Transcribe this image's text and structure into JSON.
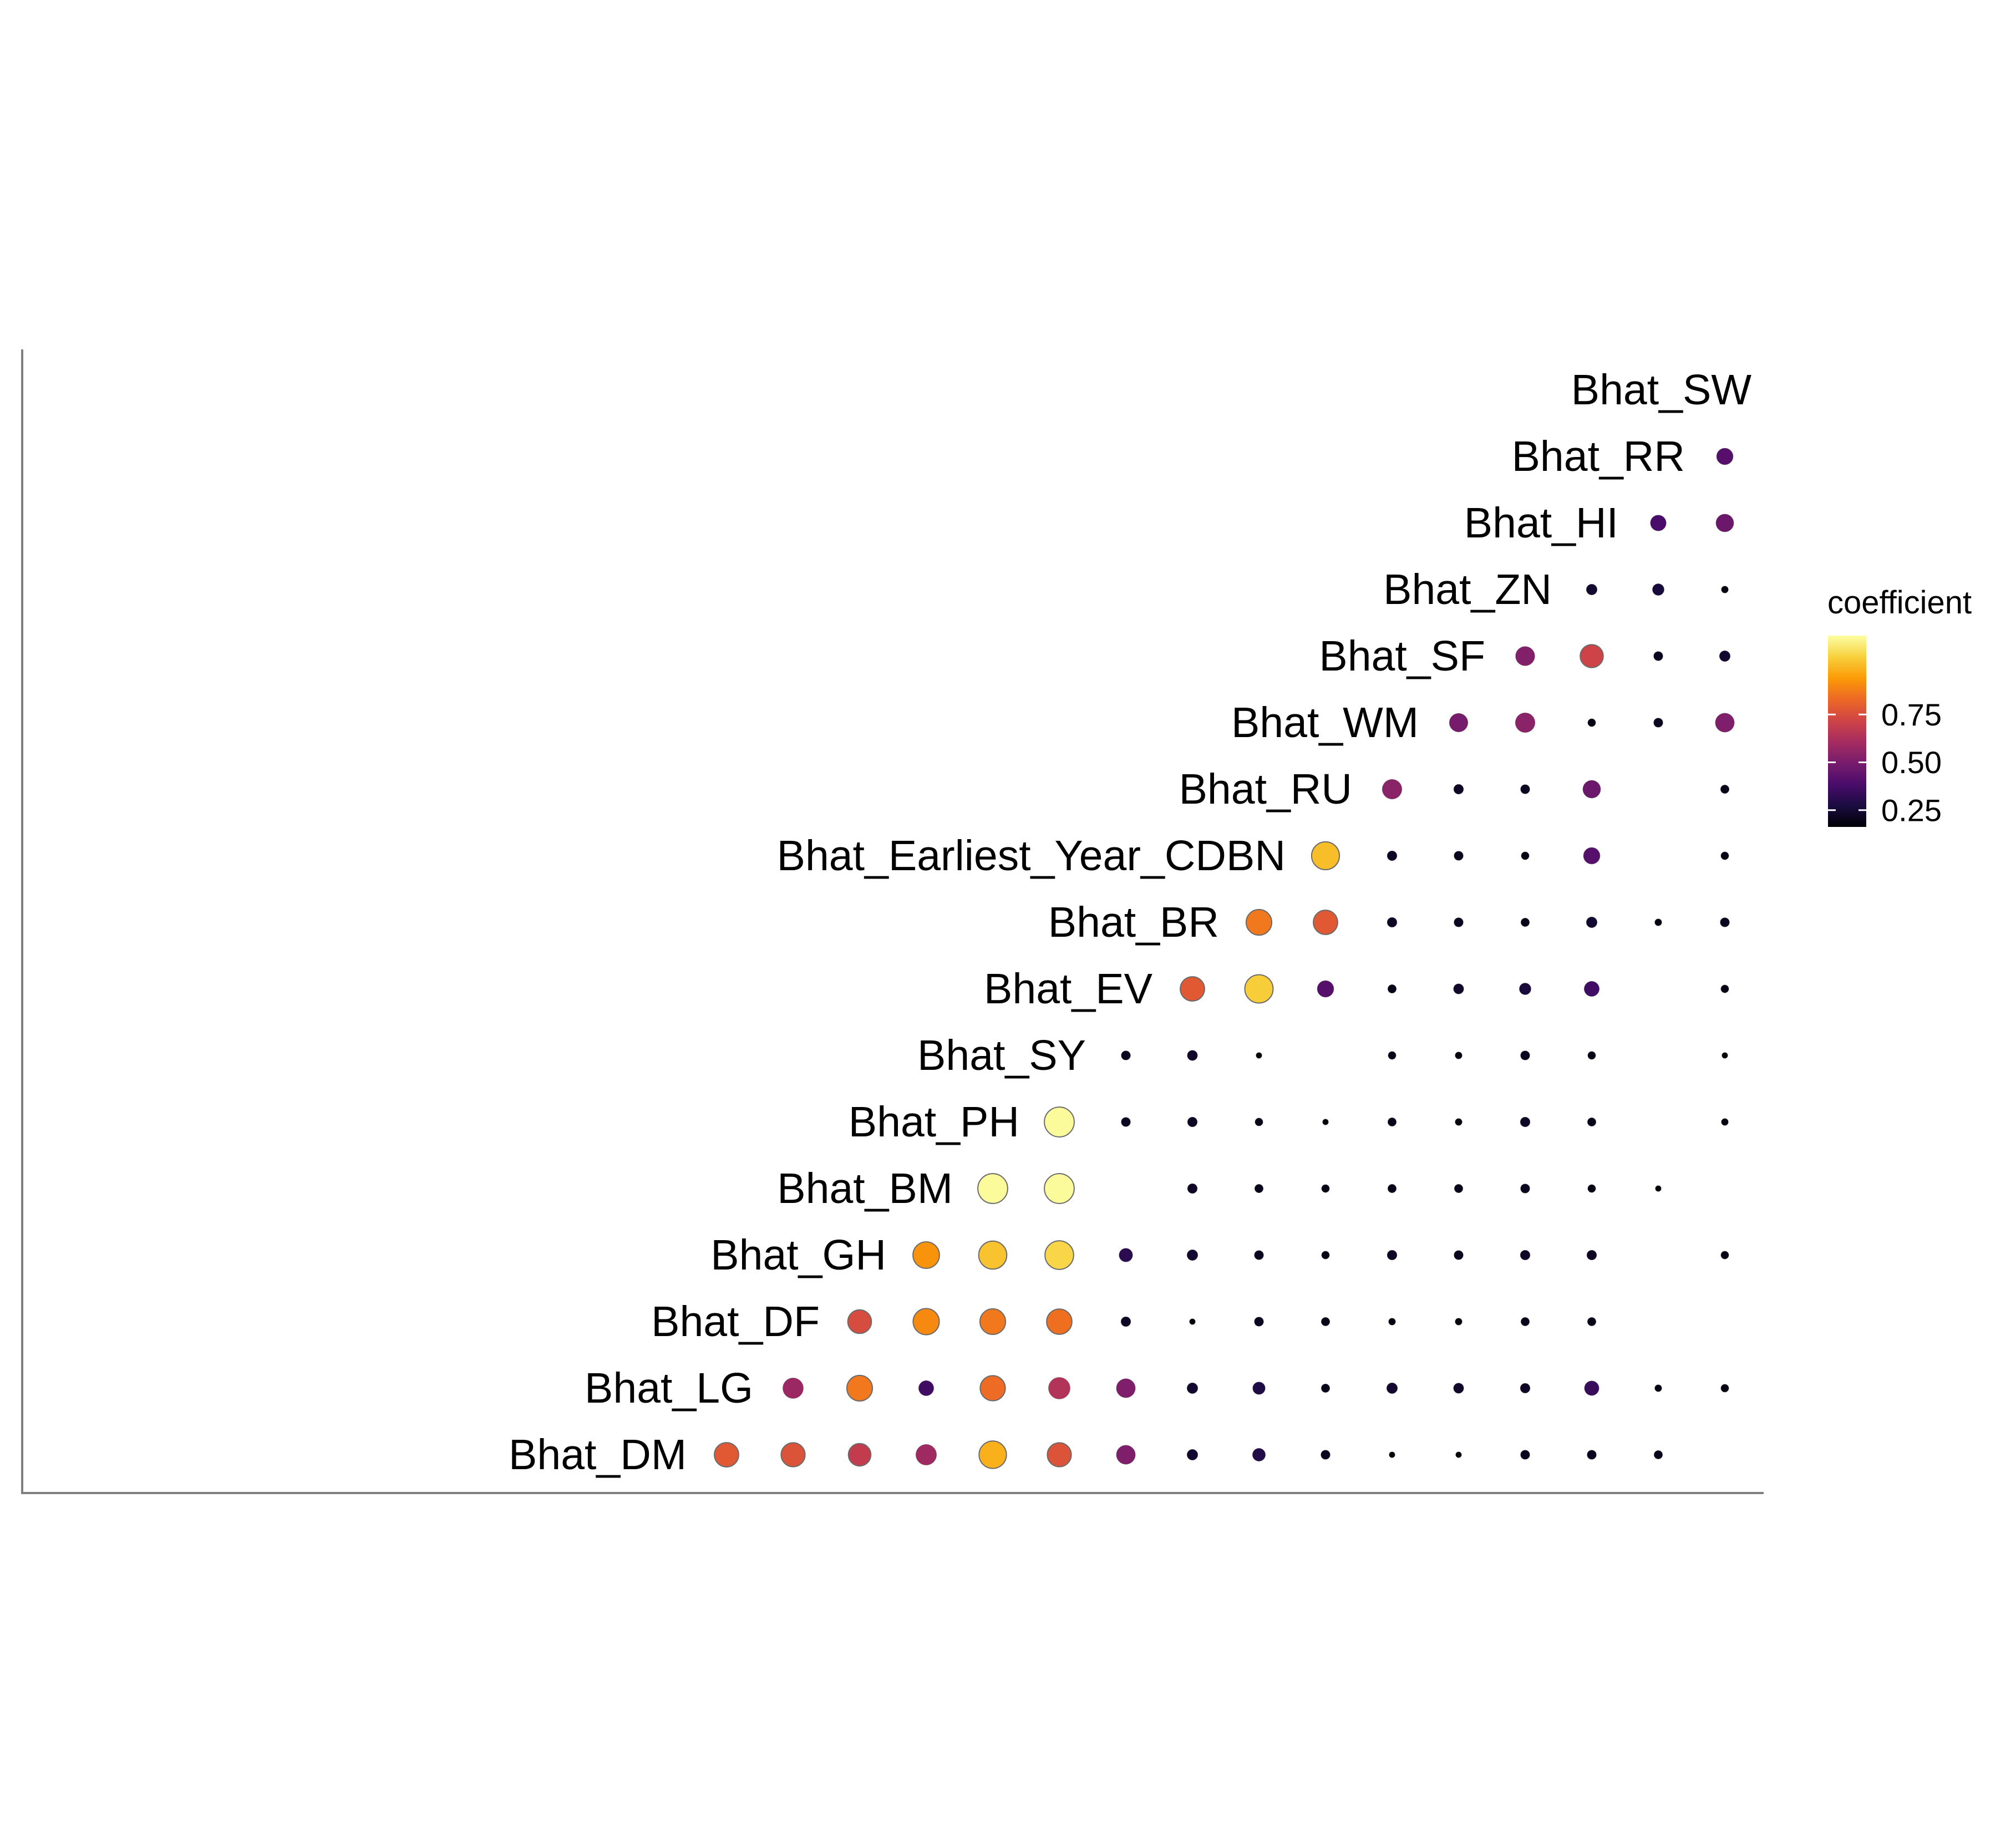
{
  "chart_data": {
    "type": "scatter",
    "subtype": "correlation-triangle",
    "title": "",
    "variables": [
      "Bhat_DM",
      "Bhat_LG",
      "Bhat_DF",
      "Bhat_GH",
      "Bhat_BM",
      "Bhat_PH",
      "Bhat_SY",
      "Bhat_EV",
      "Bhat_BR",
      "Bhat_Earliest_Year_CDBN",
      "Bhat_RU",
      "Bhat_WM",
      "Bhat_SF",
      "Bhat_ZN",
      "Bhat_HI",
      "Bhat_RR",
      "Bhat_SW"
    ],
    "value_label": "coefficient",
    "color_scale": "inferno",
    "color_range": [
      0,
      1
    ],
    "legend_ticks": [
      "0.25",
      "0.50",
      "0.75"
    ],
    "legend_position": "right",
    "grid": false,
    "rows": [
      {
        "row": "Bhat_DM",
        "values": [
          0.62,
          0.6,
          0.52,
          0.43,
          0.82,
          0.6,
          0.35,
          0.08,
          0.13,
          0.05,
          0.01,
          0.01,
          0.05,
          0.05,
          0.04,
          null
        ]
      },
      {
        "row": "Bhat_LG",
        "values": [
          0.42,
          0.7,
          0.2,
          0.67,
          0.48,
          0.35,
          0.08,
          0.12,
          0.04,
          0.08,
          0.07,
          0.06,
          0.18,
          0.02,
          0.03
        ]
      },
      {
        "row": "Bhat_DF",
        "values": [
          0.58,
          0.74,
          0.7,
          0.68,
          0.06,
          0.01,
          0.05,
          0.04,
          0.02,
          0.02,
          0.04,
          0.04,
          null,
          null
        ]
      },
      {
        "row": "Bhat_GH",
        "values": [
          0.76,
          0.86,
          0.9,
          0.15,
          0.08,
          0.05,
          0.03,
          0.06,
          0.05,
          0.06,
          0.06,
          null,
          0.03
        ]
      },
      {
        "row": "Bhat_BM",
        "values": [
          0.99,
          0.99,
          null,
          0.06,
          0.04,
          0.03,
          0.04,
          0.04,
          0.05,
          0.03,
          0.01,
          null
        ]
      },
      {
        "row": "Bhat_PH",
        "values": [
          0.99,
          0.05,
          0.06,
          0.03,
          0.01,
          0.04,
          0.02,
          0.06,
          0.04,
          null,
          0.02
        ]
      },
      {
        "row": "Bhat_SY",
        "values": [
          0.05,
          0.07,
          0.01,
          null,
          0.03,
          0.02,
          0.05,
          0.03,
          null,
          0.01
        ]
      },
      {
        "row": "Bhat_EV",
        "values": [
          0.62,
          0.88,
          0.25,
          0.04,
          0.07,
          0.1,
          0.2,
          null,
          0.03
        ]
      },
      {
        "row": "Bhat_BR",
        "values": [
          0.7,
          0.62,
          0.06,
          0.05,
          0.04,
          0.08,
          0.02,
          0.05
        ]
      },
      {
        "row": "Bhat_Earliest_Year_CDBN",
        "values": [
          0.85,
          0.06,
          0.05,
          0.03,
          0.25,
          null,
          0.03
        ]
      },
      {
        "row": "Bhat_RU",
        "values": [
          0.38,
          0.06,
          0.05,
          0.3,
          null,
          0.04
        ]
      },
      {
        "row": "Bhat_WM",
        "values": [
          0.33,
          0.38,
          0.03,
          0.05,
          0.35
        ]
      },
      {
        "row": "Bhat_SF",
        "values": [
          0.36,
          0.55,
          0.05,
          0.08
        ]
      },
      {
        "row": "Bhat_ZN",
        "values": [
          0.08,
          0.1,
          0.02
        ]
      },
      {
        "row": "Bhat_HI",
        "values": [
          0.22,
          0.3
        ]
      },
      {
        "row": "Bhat_RR",
        "values": [
          0.25
        ]
      },
      {
        "row": "Bhat_SW",
        "values": []
      }
    ]
  },
  "colors": {
    "axis_line": "#7f7f7f",
    "point_outline": "#6b6b6b",
    "scale_stops": [
      "#000004",
      "#1b0c41",
      "#4a0c6b",
      "#781c6d",
      "#a52c60",
      "#cf4446",
      "#ed6925",
      "#fb9b06",
      "#f7d13d",
      "#fcffa4"
    ]
  }
}
